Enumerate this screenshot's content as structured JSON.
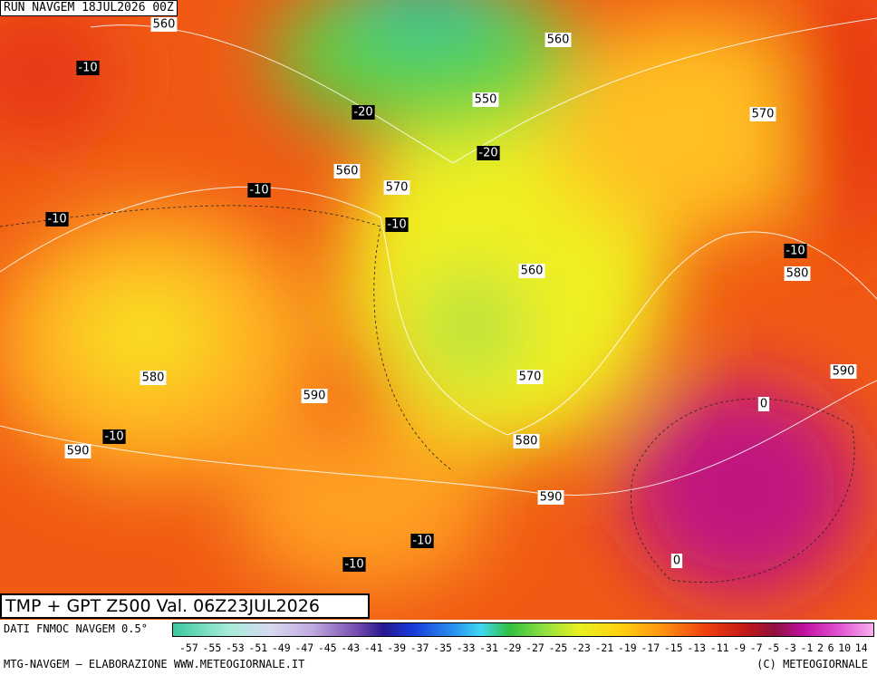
{
  "header": {
    "run": "RUN NAVGEM 18JUL2026 00Z"
  },
  "map": {
    "heights": [
      560,
      560,
      550,
      570,
      560,
      570,
      560,
      580,
      580,
      570,
      590,
      590,
      590,
      580,
      590
    ],
    "temperatures": [
      -10,
      -20,
      -20,
      -10,
      -10,
      -10,
      -10,
      -10,
      -10,
      -10,
      0,
      0
    ]
  },
  "title": "TMP + GPT Z500 Val. 06Z23JUL2026",
  "colorbar": {
    "source": "DATI FNMOC NAVGEM 0.5°",
    "labels": [
      -57,
      -55,
      -53,
      -51,
      -49,
      -47,
      -45,
      -43,
      -41,
      -39,
      -37,
      -35,
      -33,
      -31,
      -29,
      -27,
      -25,
      -23,
      -21,
      -19,
      -17,
      -15,
      -13,
      -11,
      -9,
      -7,
      -5,
      -3,
      -1,
      2,
      6,
      10,
      14
    ]
  },
  "footer": {
    "left": "MTG-NAVGEM – ELABORAZIONE WWW.METEOGIORNALE.IT",
    "right": "(C) METEOGIORNALE"
  }
}
